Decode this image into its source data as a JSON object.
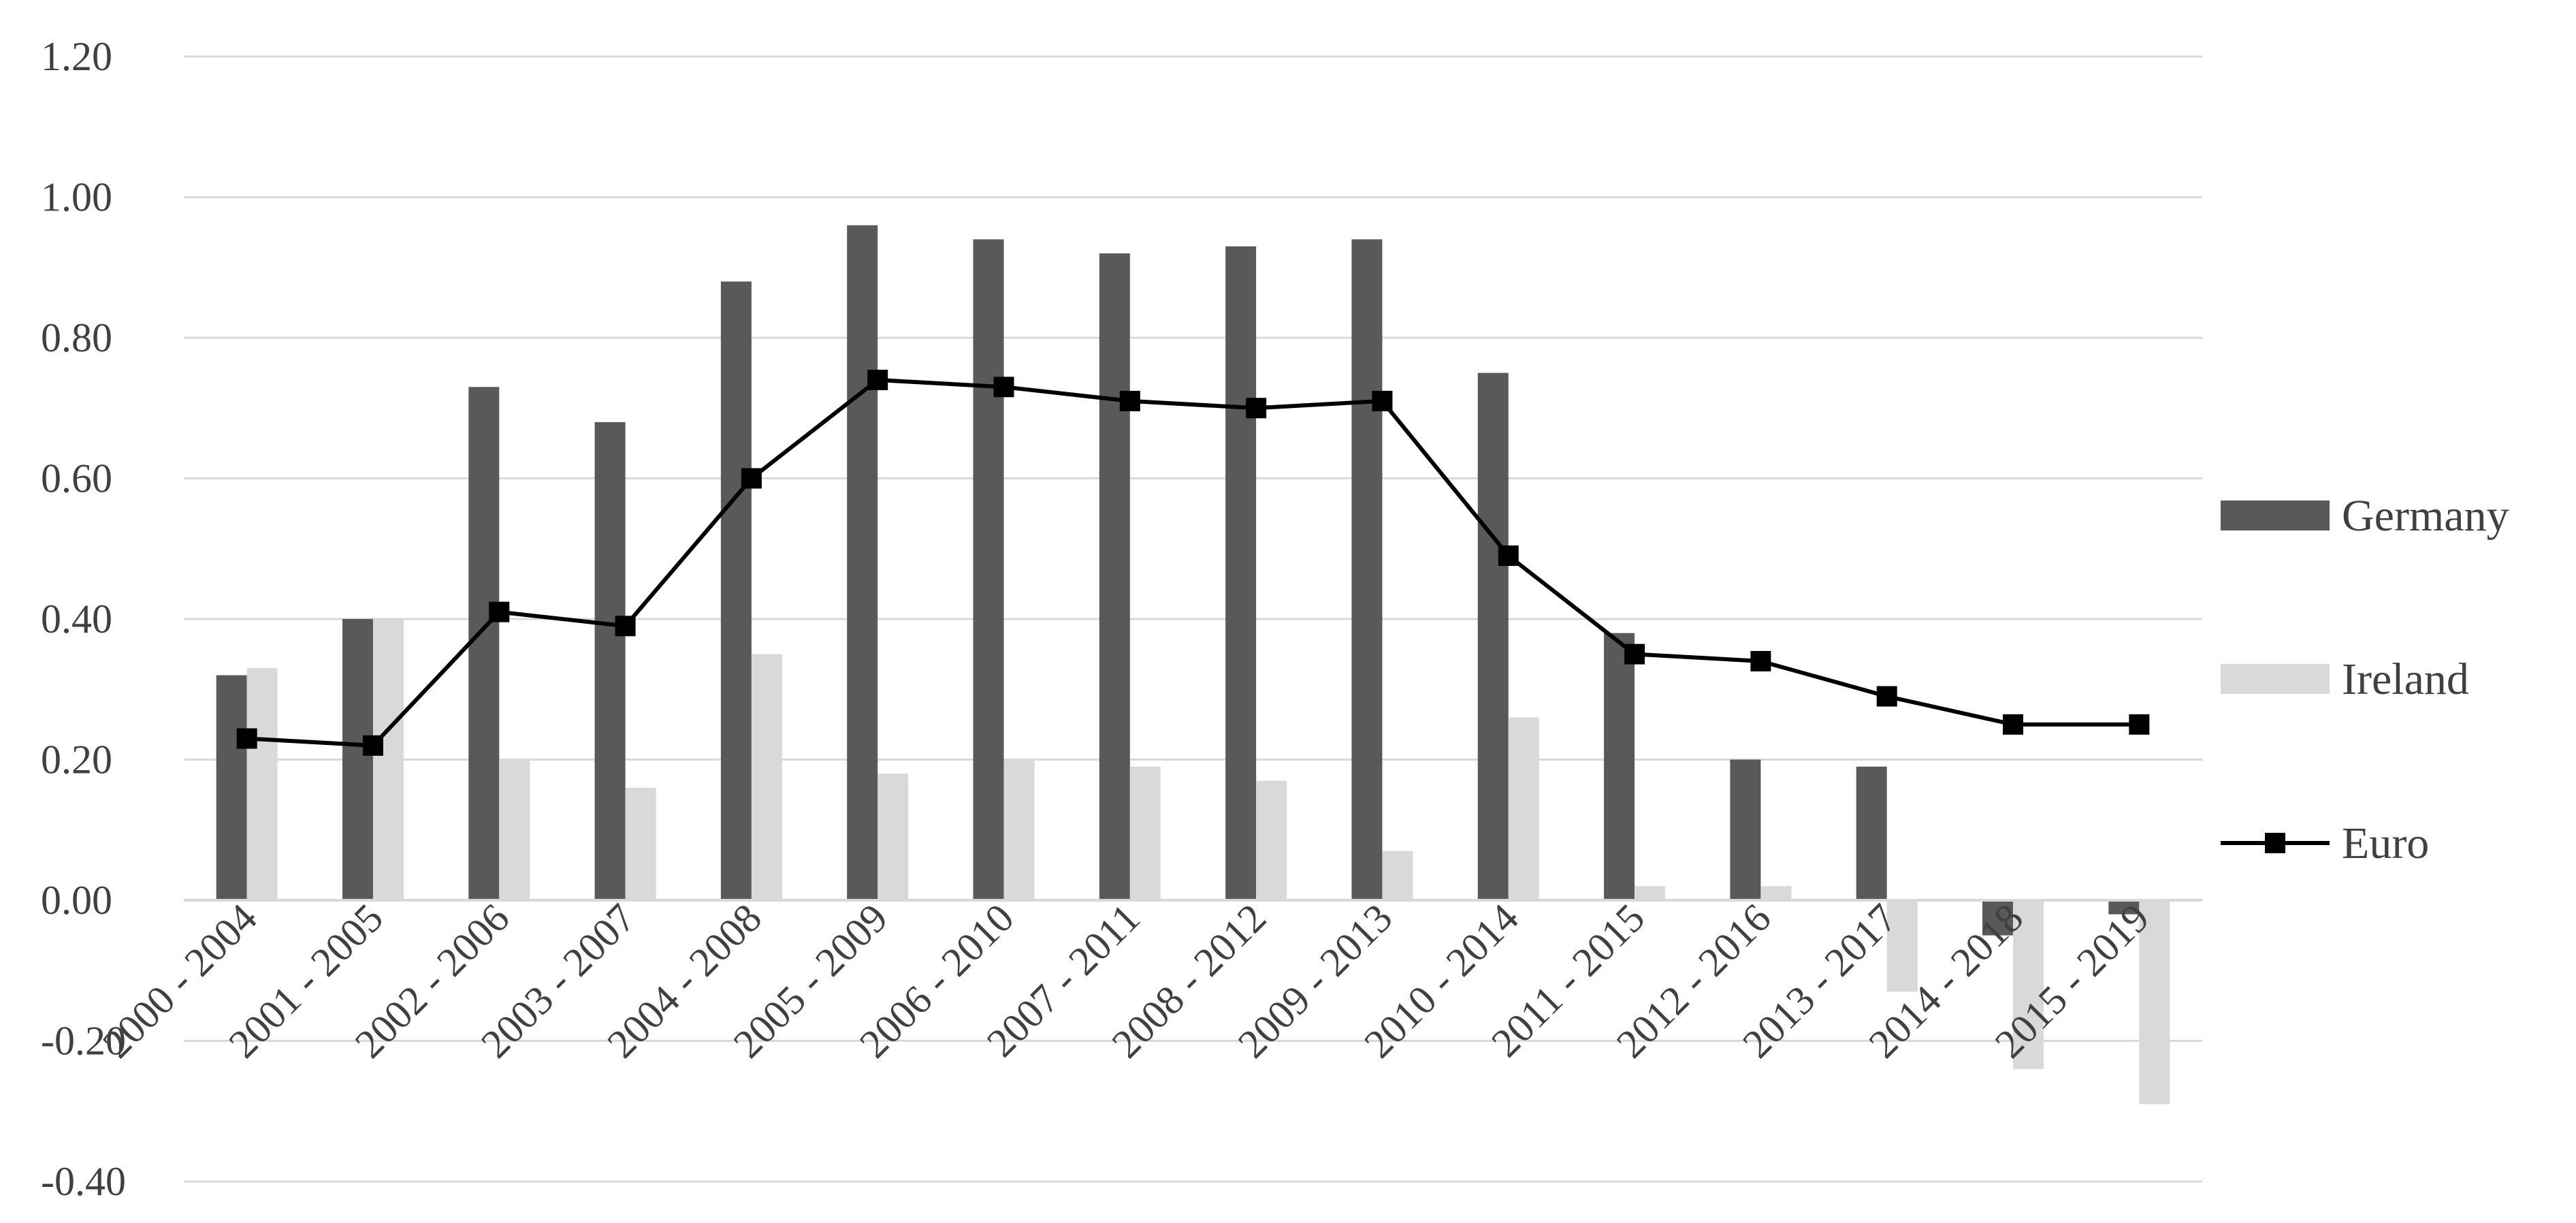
{
  "chart_data": {
    "type": "bar",
    "title": "",
    "xlabel": "",
    "ylabel": "",
    "ylim": [
      -0.4,
      1.2
    ],
    "yticks": [
      "1.20",
      "1.00",
      "0.80",
      "0.60",
      "0.40",
      "0.20",
      "0.00",
      "-0.20",
      "-0.40"
    ],
    "grid": true,
    "legend_position": "right",
    "categories": [
      "2000 - 2004",
      "2001 - 2005",
      "2002 - 2006",
      "2003 - 2007",
      "2004 - 2008",
      "2005 - 2009",
      "2006 - 2010",
      "2007 - 2011",
      "2008 - 2012",
      "2009 - 2013",
      "2010 - 2014",
      "2011 - 2015",
      "2012 - 2016",
      "2013 - 2017",
      "2014 - 2018",
      "2015 - 2019"
    ],
    "series": [
      {
        "name": "Germany",
        "kind": "bar",
        "color": "#595959",
        "values": [
          0.32,
          0.4,
          0.73,
          0.68,
          0.88,
          0.96,
          0.94,
          0.92,
          0.93,
          0.94,
          0.75,
          0.38,
          0.2,
          0.19,
          -0.05,
          -0.02
        ]
      },
      {
        "name": "Ireland",
        "kind": "bar",
        "color": "#d9d9d9",
        "values": [
          0.33,
          0.4,
          0.2,
          0.16,
          0.35,
          0.18,
          0.2,
          0.19,
          0.17,
          0.07,
          0.26,
          0.02,
          0.02,
          -0.13,
          -0.24,
          -0.29
        ]
      },
      {
        "name": "Euro",
        "kind": "line",
        "color": "#000000",
        "marker": "square",
        "values": [
          0.23,
          0.22,
          0.41,
          0.39,
          0.6,
          0.74,
          0.73,
          0.71,
          0.7,
          0.71,
          0.49,
          0.35,
          0.34,
          0.29,
          0.25,
          0.25
        ]
      }
    ]
  }
}
